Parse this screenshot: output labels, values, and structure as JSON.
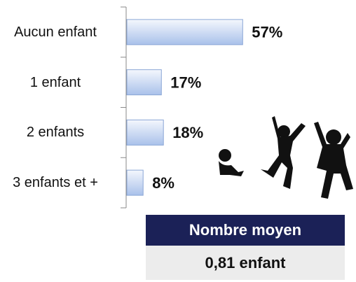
{
  "chart_data": {
    "type": "bar",
    "orientation": "horizontal",
    "categories": [
      "Aucun enfant",
      "1 enfant",
      "2 enfants",
      "3 enfants et +"
    ],
    "values": [
      57,
      17,
      18,
      8
    ],
    "value_labels": [
      "57%",
      "17%",
      "18%",
      "8%"
    ],
    "color": "#a9c1ea"
  },
  "summary": {
    "header": "Nombre moyen",
    "value": "0,81 enfant"
  }
}
